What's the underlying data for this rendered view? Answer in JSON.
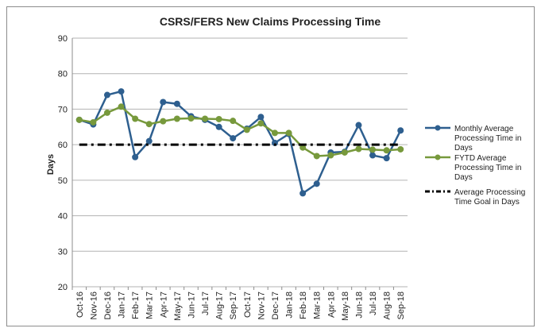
{
  "chart_data": {
    "type": "line",
    "title": "CSRS/FERS New Claims Processing Time",
    "xlabel": "",
    "ylabel": "Days",
    "ylim": [
      20,
      90
    ],
    "yticks": [
      "20",
      "30",
      "40",
      "50",
      "60",
      "70",
      "80",
      "90"
    ],
    "grid": true,
    "legend_position": "right",
    "categories": [
      "Oct-16",
      "Nov-16",
      "Dec-16",
      "Jan-17",
      "Feb-17",
      "Mar-17",
      "Apr-17",
      "May-17",
      "Jun-17",
      "Jul-17",
      "Aug-17",
      "Sep-17",
      "Oct-17",
      "Nov-17",
      "Dec-17",
      "Jan-18",
      "Feb-18",
      "Mar-18",
      "Apr-18",
      "May-18",
      "Jun-18",
      "Jul-18",
      "Aug-18",
      "Sep-18"
    ],
    "series": [
      {
        "name": "Monthly Average Processing Time in Days",
        "color": "#2e5f8f",
        "values": [
          67,
          65.7,
          74,
          75,
          56.5,
          61,
          72,
          71.5,
          68,
          67,
          65,
          61.8,
          64.5,
          67.8,
          60.5,
          63,
          46.3,
          49,
          57.8,
          58,
          65.5,
          57,
          56.2,
          64
        ]
      },
      {
        "name": "FYTD Average Processing Time in Days",
        "color": "#77993c",
        "values": [
          67,
          66.3,
          69,
          70.7,
          67.3,
          65.8,
          66.6,
          67.3,
          67.4,
          67.3,
          67.2,
          66.7,
          64.2,
          66,
          63.3,
          63.3,
          59.2,
          56.8,
          57,
          57.8,
          58.8,
          58.6,
          58.4,
          58.7
        ]
      },
      {
        "name": "Average Processing Time Goal in Days",
        "color": "#000000",
        "style": "dash-dot",
        "values": [
          60,
          60,
          60,
          60,
          60,
          60,
          60,
          60,
          60,
          60,
          60,
          60,
          60,
          60,
          60,
          60,
          60,
          60,
          60,
          60,
          60,
          60,
          60,
          60
        ]
      }
    ],
    "legend_lines": [
      [
        "Monthly Average",
        "Processing Time in",
        "Days"
      ],
      [
        "FYTD Average",
        "Processing Time in",
        "Days"
      ],
      [
        "Average Processing",
        "Time Goal in Days"
      ]
    ]
  }
}
